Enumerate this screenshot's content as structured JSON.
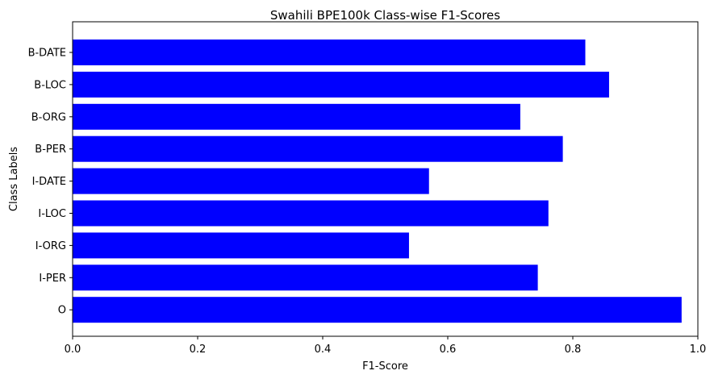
{
  "chart_data": {
    "type": "bar",
    "orientation": "horizontal",
    "title": "Swahili BPE100k Class-wise F1-Scores",
    "xlabel": "F1-Score",
    "ylabel": "Class Labels",
    "categories": [
      "B-DATE",
      "B-LOC",
      "B-ORG",
      "B-PER",
      "I-DATE",
      "I-LOC",
      "I-ORG",
      "I-PER",
      "O"
    ],
    "values": [
      0.82,
      0.858,
      0.716,
      0.784,
      0.57,
      0.761,
      0.538,
      0.744,
      0.974
    ],
    "xlim": [
      0,
      1
    ],
    "xticks": [
      "0.0",
      "0.2",
      "0.4",
      "0.6",
      "0.8",
      "1.0"
    ],
    "bar_color": "#0000ff",
    "grid": false,
    "legend": "none"
  }
}
